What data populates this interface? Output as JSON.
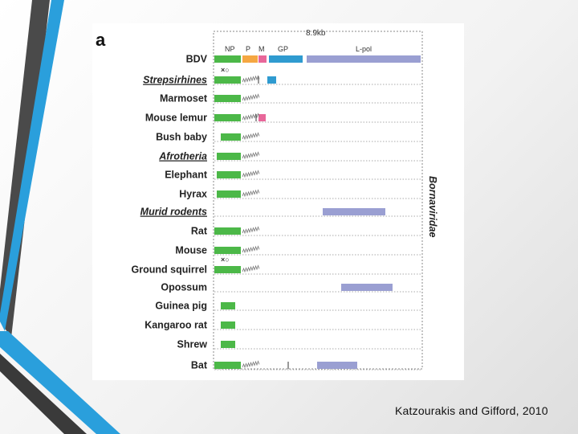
{
  "slide": {
    "citation": "Katzourakis and Gifford, 2010"
  },
  "figure": {
    "panel_label": "a",
    "genome_length_label": "8.9kb",
    "family_label": "Bornaviridae",
    "genes": [
      {
        "name": "NP",
        "color": "#4cb848"
      },
      {
        "name": "P",
        "color": "#f5a742"
      },
      {
        "name": "M",
        "color": "#e8679a"
      },
      {
        "name": "GP",
        "color": "#2f9bd0"
      },
      {
        "name": "L-pol",
        "color": "#9a9fd2"
      }
    ],
    "marker_symbols": "×○",
    "rows": [
      {
        "label": "BDV",
        "clade": false
      },
      {
        "label": "Strepsirhines",
        "clade": true
      },
      {
        "label": "Marmoset",
        "clade": false
      },
      {
        "label": "Mouse lemur",
        "clade": false
      },
      {
        "label": "Bush baby",
        "clade": false
      },
      {
        "label": "Afrotheria",
        "clade": true
      },
      {
        "label": "Elephant",
        "clade": false
      },
      {
        "label": "Hyrax",
        "clade": false
      },
      {
        "label": "Murid rodents",
        "clade": true
      },
      {
        "label": "Rat",
        "clade": false
      },
      {
        "label": "Mouse",
        "clade": false
      },
      {
        "label": "Ground squirrel",
        "clade": false
      },
      {
        "label": "Opossum",
        "clade": false
      },
      {
        "label": "Guinea pig",
        "clade": false
      },
      {
        "label": "Kangaroo rat",
        "clade": false
      },
      {
        "label": "Shrew",
        "clade": false
      },
      {
        "label": "Bat",
        "clade": false
      }
    ]
  }
}
